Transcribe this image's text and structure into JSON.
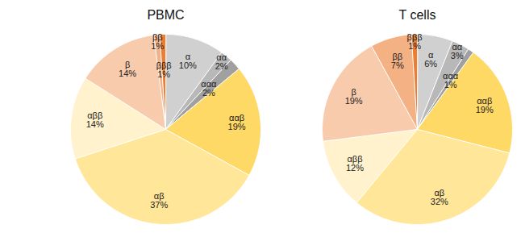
{
  "chart_data": [
    {
      "type": "pie",
      "title": "PBMC",
      "categories": [
        "α",
        "αα",
        "ααα",
        "ααβ",
        "αβ",
        "αββ",
        "β",
        "ββ",
        "βββ"
      ],
      "values": [
        10,
        2,
        2,
        19,
        37,
        14,
        14,
        1,
        1
      ],
      "value_labels": [
        "10%",
        "2%",
        "2%",
        "19%",
        "37%",
        "14%",
        "14%",
        "1%",
        "1%"
      ],
      "colors": [
        "#d0d0d0",
        "#b8b8b8",
        "#a0a0a0",
        "#ffd966",
        "#ffe699",
        "#fff2cc",
        "#f8cbad",
        "#f4b183",
        "#ed7d31"
      ],
      "data_labels": true
    },
    {
      "type": "pie",
      "title": "T cells",
      "categories": [
        "α",
        "αα",
        "ααα",
        "ααβ",
        "αβ",
        "αββ",
        "β",
        "ββ",
        "βββ"
      ],
      "values": [
        6,
        3,
        1,
        19,
        32,
        12,
        19,
        7,
        1
      ],
      "value_labels": [
        "6%",
        "3%",
        "1%",
        "19%",
        "32%",
        "12%",
        "19%",
        "7%",
        "1%"
      ],
      "colors": [
        "#d0d0d0",
        "#b8b8b8",
        "#a0a0a0",
        "#ffd966",
        "#ffe699",
        "#fff2cc",
        "#f8cbad",
        "#f4b183",
        "#ed7d31"
      ],
      "data_labels": true
    }
  ]
}
